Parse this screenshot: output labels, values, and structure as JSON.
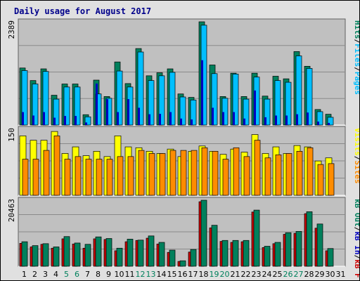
{
  "title": "Daily usage for August 2017",
  "colors": {
    "background": "#e0e0e0",
    "plot_bg": "#c0c0c0",
    "hits": "#00805c",
    "files": "#00bfff",
    "pages": "#0000c0",
    "visits": "#ffff00",
    "sites": "#ff8c00",
    "kb_in": "#00805c",
    "kb_out": "#cc0000",
    "weekend_label": "#00805c",
    "weekday_label": "#000000",
    "title": "#00008b"
  },
  "chart_data": [
    {
      "type": "bar",
      "panel": "hits-files-pages",
      "ytick_label": "2389",
      "ymax": 2389,
      "legend": {
        "hits": "Hits",
        "files": "Files",
        "pages": "Pages",
        "sep1": "/",
        "sep2": "/"
      },
      "categories": [
        "1",
        "2",
        "3",
        "4",
        "5",
        "6",
        "7",
        "8",
        "9",
        "10",
        "11",
        "12",
        "13",
        "14",
        "15",
        "16",
        "17",
        "18",
        "19",
        "20",
        "21",
        "22",
        "23",
        "24",
        "25",
        "26",
        "27",
        "28",
        "29",
        "30",
        "31"
      ],
      "weekend": [
        "5",
        "6",
        "12",
        "13",
        "19",
        "20",
        "26",
        "27"
      ],
      "series": [
        {
          "key": "hits",
          "values": [
            1320,
            1030,
            1300,
            690,
            950,
            950,
            240,
            1040,
            660,
            1460,
            960,
            1770,
            1140,
            1210,
            1300,
            720,
            640,
            2389,
            1390,
            660,
            1200,
            660,
            1200,
            670,
            1130,
            1070,
            1700,
            1360,
            360,
            250,
            0
          ]
        },
        {
          "key": "files",
          "values": [
            1260,
            950,
            1240,
            600,
            880,
            880,
            190,
            720,
            620,
            1250,
            880,
            1690,
            1030,
            1140,
            1220,
            650,
            580,
            2310,
            1190,
            620,
            1180,
            600,
            1110,
            600,
            1030,
            990,
            1600,
            1310,
            310,
            180,
            0
          ]
        },
        {
          "key": "pages",
          "values": [
            300,
            220,
            300,
            170,
            210,
            210,
            60,
            960,
            600,
            300,
            600,
            400,
            250,
            260,
            300,
            150,
            130,
            1500,
            400,
            300,
            300,
            150,
            800,
            180,
            220,
            220,
            250,
            290,
            80,
            50,
            0
          ]
        }
      ]
    },
    {
      "type": "bar",
      "panel": "visits-sites",
      "ytick_label": "150",
      "ymax": 150,
      "legend": {
        "visits": "Visits",
        "sites": "Sites",
        "sep": "/"
      },
      "categories": [
        "1",
        "2",
        "3",
        "4",
        "5",
        "6",
        "7",
        "8",
        "9",
        "10",
        "11",
        "12",
        "13",
        "14",
        "15",
        "16",
        "17",
        "18",
        "19",
        "20",
        "21",
        "22",
        "23",
        "24",
        "25",
        "26",
        "27",
        "28",
        "29",
        "30",
        "31"
      ],
      "series": [
        {
          "key": "visits",
          "values": [
            135,
            125,
            125,
            145,
            95,
            110,
            90,
            100,
            88,
            135,
            110,
            108,
            100,
            95,
            105,
            88,
            100,
            112,
            100,
            93,
            105,
            98,
            138,
            95,
            110,
            95,
            113,
            110,
            78,
            85,
            0
          ]
        },
        {
          "key": "sites",
          "values": [
            82,
            82,
            102,
            135,
            82,
            88,
            82,
            82,
            82,
            88,
            88,
            102,
            95,
            95,
            102,
            102,
            102,
            108,
            100,
            82,
            108,
            88,
            125,
            85,
            92,
            95,
            100,
            108,
            70,
            72,
            0
          ]
        }
      ]
    },
    {
      "type": "bar",
      "panel": "kb-in-out",
      "ytick_label": "20463",
      "ymax": 20463,
      "legend": {
        "kb_out": "kB F",
        "kb_in": "kB In",
        "kb_out_alt": "kB Out",
        "sep1": "/",
        "sep2": "/"
      },
      "categories": [
        "1",
        "2",
        "3",
        "4",
        "5",
        "6",
        "7",
        "8",
        "9",
        "10",
        "11",
        "12",
        "13",
        "14",
        "15",
        "16",
        "17",
        "18",
        "19",
        "20",
        "21",
        "22",
        "23",
        "24",
        "25",
        "26",
        "27",
        "28",
        "29",
        "30",
        "31"
      ],
      "series": [
        {
          "key": "kb_in",
          "values": [
            7600,
            6400,
            7000,
            6000,
            9200,
            7200,
            6800,
            9100,
            8600,
            5600,
            8400,
            8100,
            9400,
            7400,
            5000,
            1700,
            5200,
            20463,
            12700,
            8000,
            8000,
            8000,
            17400,
            6200,
            7400,
            10400,
            10800,
            16900,
            13100,
            5500,
            0
          ]
        },
        {
          "key": "kb_out",
          "values": [
            7100,
            6000,
            6800,
            5600,
            8500,
            6900,
            5600,
            8500,
            8300,
            4800,
            7600,
            8000,
            8700,
            6900,
            4300,
            1500,
            4400,
            20000,
            11900,
            7700,
            7400,
            7600,
            16800,
            5800,
            7000,
            9900,
            10200,
            16300,
            11800,
            4800,
            0
          ]
        }
      ]
    }
  ]
}
